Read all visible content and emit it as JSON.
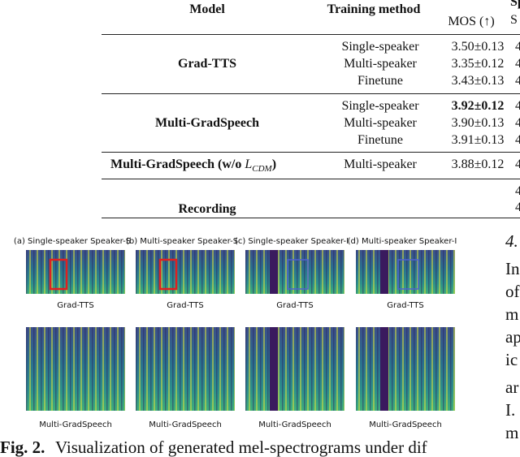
{
  "table": {
    "header": {
      "model": "Model",
      "method": "Training method",
      "mos": "MOS (↑)",
      "cut_top": "Sp",
      "cut_sub": "S"
    },
    "groups": [
      {
        "model": "Grad-TTS",
        "rows": [
          {
            "method": "Single-speaker",
            "mos": "3.50±0.13",
            "cut": "4"
          },
          {
            "method": "Multi-speaker",
            "mos": "3.35±0.12",
            "cut": "4"
          },
          {
            "method": "Finetune",
            "mos": "3.43±0.13",
            "cut": "4"
          }
        ]
      },
      {
        "model": "Multi-GradSpeech",
        "rows": [
          {
            "method": "Single-speaker",
            "mos": "3.92±0.12",
            "cut": "4"
          },
          {
            "method": "Multi-speaker",
            "mos": "3.90±0.13",
            "cut": "4"
          },
          {
            "method": "Finetune",
            "mos": "3.91±0.13",
            "cut": "4"
          }
        ]
      },
      {
        "model": {
          "text": "Multi-GradSpeech (w/o ",
          "math": "L",
          "sub": "CDM",
          "close": ")"
        },
        "rows": [
          {
            "method": "Multi-speaker",
            "mos": "3.88±0.12",
            "cut": "4"
          }
        ]
      },
      {
        "model": "Recording",
        "rows": [
          {
            "cut": "4"
          },
          {
            "cut": "4"
          }
        ]
      }
    ]
  },
  "figure": {
    "panels": [
      {
        "title": "(a) Single-speaker Speaker-S",
        "top": "Grad-TTS",
        "bottom": "Multi-GradSpeech"
      },
      {
        "title": "(b) Multi-speaker Speaker-S",
        "top": "Grad-TTS",
        "bottom": "Multi-GradSpeech"
      },
      {
        "title": "(c) Single-speaker Speaker-I",
        "top": "Grad-TTS",
        "bottom": "Multi-GradSpeech"
      },
      {
        "title": "(d) Multi-speaker Speaker-I",
        "top": "Grad-TTS",
        "bottom": "Multi-GradSpeech"
      }
    ],
    "caption_label": "Fig. 2.",
    "caption": "Visualization of generated mel-spectrograms under dif"
  },
  "side_text": [
    "4.",
    "In",
    "of",
    "m",
    "ap",
    "ic",
    "ar",
    "I.",
    "m"
  ]
}
